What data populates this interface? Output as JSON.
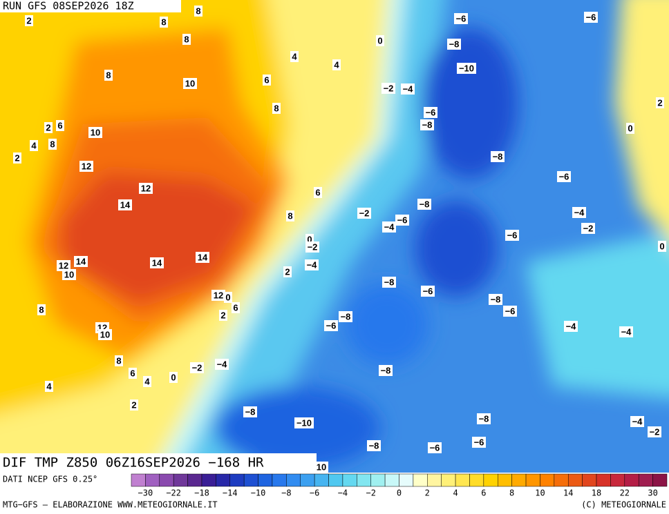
{
  "header": {
    "run": "RUN GFS 08SEP2026 18Z"
  },
  "map": {
    "contour_labels": [
      8,
      2,
      8,
      8,
      -6,
      -6,
      0,
      4,
      4,
      -8,
      -10,
      8,
      6,
      10,
      -2,
      -4,
      2,
      8,
      -6,
      2,
      6,
      10,
      -8,
      0,
      4,
      8,
      2,
      -8,
      12,
      -6,
      12,
      6,
      14,
      -8,
      -2,
      8,
      -4,
      -6,
      -4,
      -2,
      -6,
      0,
      -2,
      0,
      14,
      14,
      12,
      14,
      -4,
      10,
      2,
      -8,
      -6,
      12,
      0,
      -8,
      6,
      -6,
      8,
      2,
      -8,
      -6,
      12,
      10,
      -4,
      -4,
      8,
      -2,
      -4,
      -8,
      6,
      0,
      4,
      4,
      2,
      -8,
      -8,
      -10,
      -4,
      -2,
      -8,
      -6,
      -6,
      10
    ]
  },
  "footer": {
    "field": "DIF TMP Z850 06Z16SEP2026 −168 HR",
    "source": "DATI NCEP GFS 0.25°",
    "credit": "MTG-GFS — ELABORAZIONE WWW.METEOGIORNALE.IT",
    "copyright": "(C) METEOGIORNALE"
  },
  "colorbar": {
    "colors": [
      "#c080d0",
      "#a060c0",
      "#8a4aae",
      "#70389a",
      "#5a2890",
      "#3a1e96",
      "#2828a8",
      "#1e3cc0",
      "#1e50d2",
      "#1e64e0",
      "#2878ec",
      "#328cf0",
      "#3ca0f0",
      "#46b4f0",
      "#50c8f0",
      "#64d8f0",
      "#82e6f0",
      "#a0f0f0",
      "#c8f8f8",
      "#e6fcfc",
      "#ffffc8",
      "#fff5a0",
      "#fff078",
      "#ffe650",
      "#ffdc28",
      "#ffd200",
      "#ffbe00",
      "#ffaa00",
      "#ff9600",
      "#ff8200",
      "#f56e0a",
      "#eb5a14",
      "#e1461e",
      "#d73228",
      "#c8283c",
      "#b41e46",
      "#a01e50",
      "#8c1446"
    ],
    "ticks": [
      -30,
      -22,
      -18,
      -14,
      -10,
      -8,
      -6,
      -4,
      -2,
      0,
      2,
      4,
      6,
      8,
      10,
      14,
      18,
      22,
      30
    ]
  }
}
